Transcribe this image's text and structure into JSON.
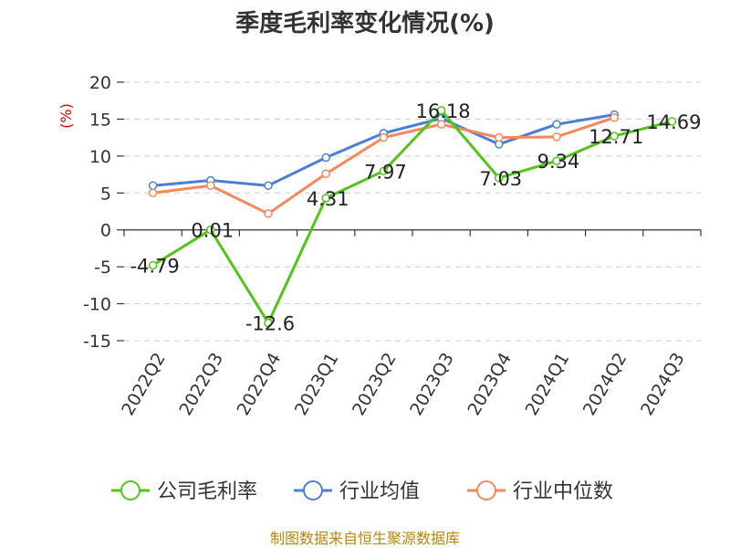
{
  "chart_data": {
    "type": "line",
    "title": "季度毛利率变化情况(%)",
    "ylabel": "(%)",
    "categories": [
      "2022Q2",
      "2022Q3",
      "2022Q4",
      "2023Q1",
      "2023Q2",
      "2023Q3",
      "2023Q4",
      "2024Q1",
      "2024Q2",
      "2024Q3"
    ],
    "ylim": [
      -15,
      20
    ],
    "yticks": [
      "20",
      "15",
      "10",
      "5",
      "0",
      "-5",
      "-10",
      "-15"
    ],
    "grid": true,
    "legend_position": "bottom",
    "series": [
      {
        "name": "公司毛利率",
        "color": "#52c41a",
        "values": [
          -4.79,
          0.01,
          -12.6,
          4.31,
          7.97,
          16.18,
          7.03,
          9.34,
          12.71,
          14.69
        ],
        "labels": [
          "-4.79",
          "0.01",
          "-12.6",
          "4.31",
          "7.97",
          "16.18",
          "7.03",
          "9.34",
          "12.71",
          "14.69"
        ]
      },
      {
        "name": "行业均值",
        "color": "#4a7fd9",
        "values": [
          6.0,
          6.7,
          6.0,
          9.8,
          13.1,
          15.1,
          11.6,
          14.3,
          15.6,
          null
        ]
      },
      {
        "name": "行业中位数",
        "color": "#f5895a",
        "values": [
          5.0,
          6.0,
          2.2,
          7.6,
          12.5,
          14.3,
          12.5,
          12.6,
          15.2,
          null
        ]
      }
    ]
  },
  "footer": {
    "source": "制图数据来自恒生聚源数据库"
  }
}
